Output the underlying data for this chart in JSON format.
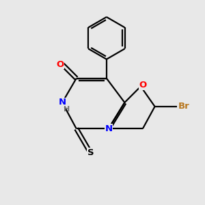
{
  "background_color": "#e8e8e8",
  "bond_color": "#000000",
  "atom_colors": {
    "O": "#ff0000",
    "N": "#0000ff",
    "S": "#000000",
    "Br": "#b87820",
    "C": "#000000",
    "H": "#707070"
  },
  "figsize": [
    3.0,
    3.0
  ],
  "dpi": 100,
  "lw": 1.6
}
